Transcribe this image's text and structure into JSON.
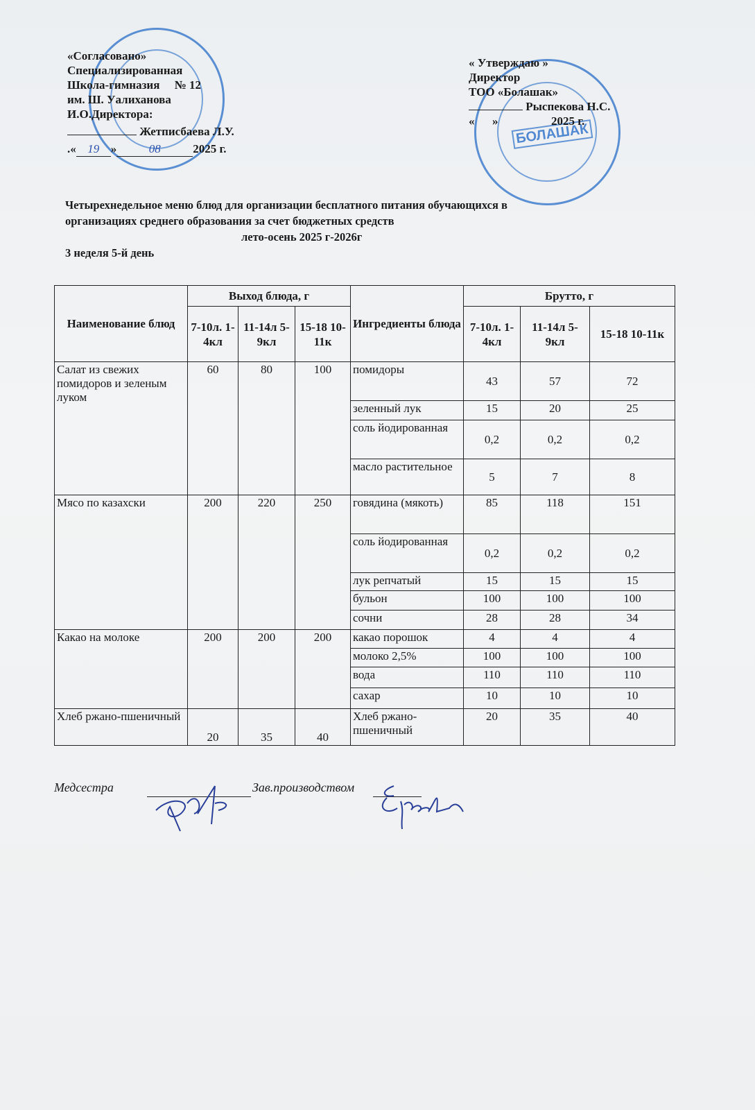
{
  "approval_left": {
    "lines": [
      "«Согласовано»",
      "Специализированная",
      "Школа-гимназия     № 12",
      "им. Ш. Уалиханова",
      "И.О.Директора:"
    ],
    "signer": "Жетписбаева Л.У.",
    "date_prefix": ".«",
    "date_day": "19",
    "date_suffix": "»",
    "date_month": "08",
    "date_year": "2025 г."
  },
  "approval_right": {
    "lines": [
      "« Утверждаю »",
      "Директор",
      "ТОО «Болашак»"
    ],
    "signer": "Рыспекова Н.С.",
    "date": "«      »                  2025 г."
  },
  "stamps": {
    "right_text": "БОЛАШАК",
    "color": "#2f6fc4"
  },
  "title": {
    "line1": "Четырехнедельное меню блюд для организации бесплатного питания обучающихся в",
    "line2": "организациях среднего образования за счет бюджетных средств",
    "line3": "лето-осень 2025 г-2026г",
    "line4": "3 неделя 5-й день"
  },
  "table": {
    "headers": {
      "dish": "Наименование блюд",
      "yield": "Выход блюда, г",
      "ingredients": "Ингредиенты блюда",
      "gross": "Брутто, г",
      "yield_cols": [
        "7-10л. 1-4кл",
        "11-14л 5-9кл",
        "15-18 10-11к"
      ],
      "gross_cols": [
        "7-10л. 1-4кл",
        "11-14л 5-9кл",
        "15-18 10-11к"
      ]
    },
    "dishes": [
      {
        "name": "Салат из свежих помидоров и зеленым луком",
        "yield": [
          "60",
          "80",
          "100"
        ],
        "ingredients": [
          [
            "помидоры",
            "43",
            "57",
            "72"
          ],
          [
            "зеленный лук",
            "15",
            "20",
            "25"
          ],
          [
            "соль йодированная",
            "0,2",
            "0,2",
            "0,2"
          ],
          [
            "масло растительное",
            "5",
            "7",
            "8"
          ]
        ]
      },
      {
        "name": "Мясо по казахски",
        "yield": [
          "200",
          "220",
          "250"
        ],
        "ingredients": [
          [
            "говядина (мякоть)",
            "85",
            "118",
            "151"
          ],
          [
            "соль йодированная",
            "0,2",
            "0,2",
            "0,2"
          ],
          [
            "лук репчатый",
            "15",
            "15",
            "15"
          ],
          [
            "бульон",
            "100",
            "100",
            "100"
          ],
          [
            "сочни",
            "28",
            "28",
            "34"
          ]
        ]
      },
      {
        "name": "Какао на молоке",
        "yield": [
          "200",
          "200",
          "200"
        ],
        "ingredients": [
          [
            "какао порошок",
            "4",
            "4",
            "4"
          ],
          [
            "молоко 2,5%",
            "100",
            "100",
            "100"
          ],
          [
            "вода",
            "110",
            "110",
            "110"
          ],
          [
            "сахар",
            "10",
            "10",
            "10"
          ]
        ]
      },
      {
        "name": "Хлеб ржано-пшеничный",
        "yield": [
          "20",
          "35",
          "40"
        ],
        "ingredients": [
          [
            "Хлеб ржано-пшеничный",
            "20",
            "35",
            "40"
          ]
        ]
      }
    ]
  },
  "signatures": {
    "nurse": "Медсестра",
    "manager": "Зав.производством"
  }
}
